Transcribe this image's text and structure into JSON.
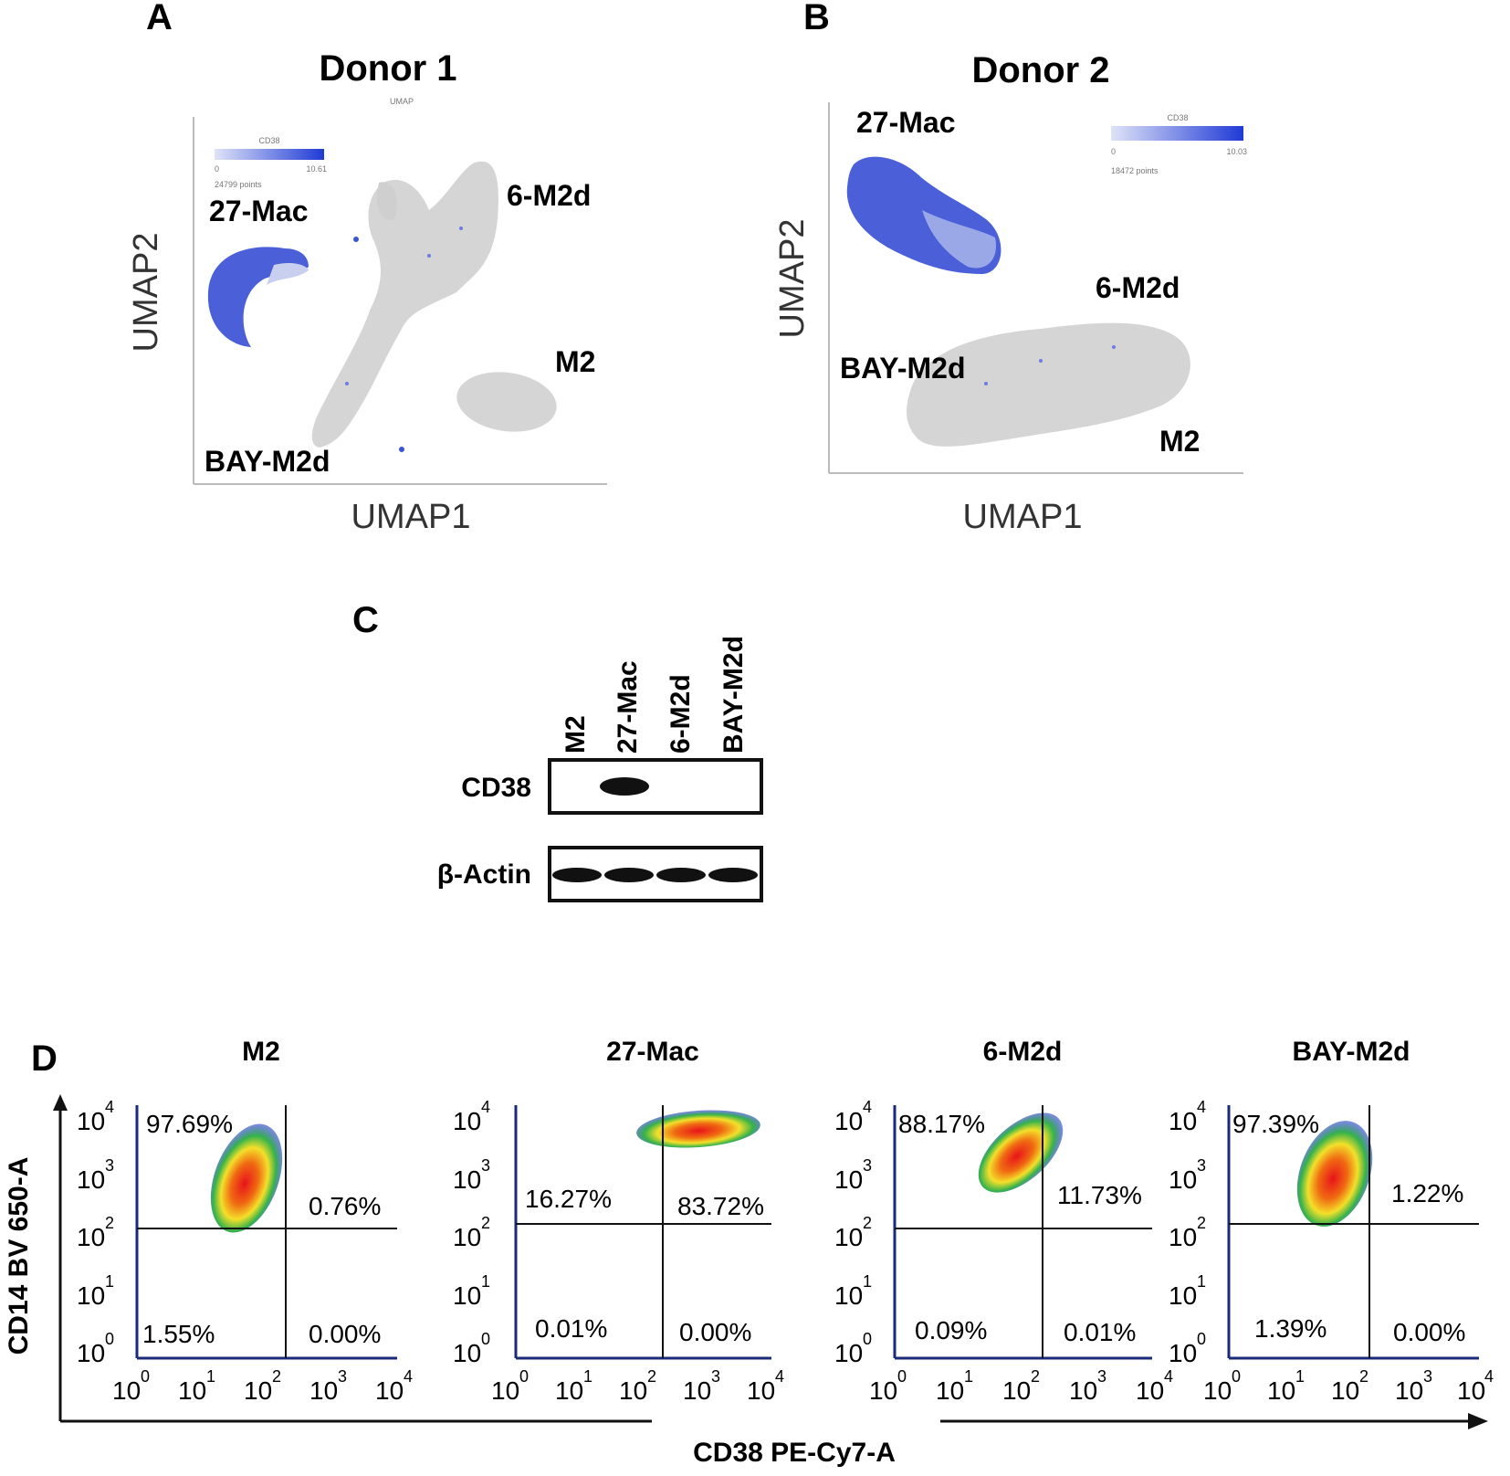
{
  "panels": {
    "a": {
      "label": "A",
      "title": "Donor 1",
      "xlabel": "UMAP1",
      "ylabel": "UMAP2",
      "legend": {
        "name": "CD38",
        "min": "0",
        "max": "10.61",
        "points": "24799 points"
      },
      "top_caption": "UMAP",
      "clusters": [
        "27-Mac",
        "6-M2d",
        "M2",
        "BAY-M2d"
      ]
    },
    "b": {
      "label": "B",
      "title": "Donor 2",
      "xlabel": "UMAP1",
      "ylabel": "UMAP2",
      "legend": {
        "name": "CD38",
        "min": "0",
        "max": "10.03",
        "points": "18472 points"
      },
      "clusters": [
        "27-Mac",
        "6-M2d",
        "BAY-M2d",
        "M2"
      ]
    },
    "c": {
      "label": "C",
      "lanes": [
        "M2",
        "27-Mac",
        "6-M2d",
        "BAY-M2d"
      ],
      "blots": [
        {
          "name": "CD38",
          "band_intensity": [
            0,
            1,
            0,
            0
          ]
        },
        {
          "name": "β-Actin",
          "band_intensity": [
            1,
            1,
            1,
            1
          ]
        }
      ]
    },
    "d": {
      "label": "D",
      "xlabel": "CD38  PE-Cy7-A",
      "ylabel": "CD14 BV 650-A",
      "tick_base": "10",
      "tick_exponents": [
        "0",
        "1",
        "2",
        "3",
        "4"
      ],
      "plots": [
        {
          "title": "M2",
          "quadrants": {
            "UL": "97.69%",
            "UR": "0.76%",
            "LL": "1.55%",
            "LR": "0.00%"
          }
        },
        {
          "title": "27-Mac",
          "quadrants": {
            "UL": "16.27%",
            "UR": "83.72%",
            "LL": "0.01%",
            "LR": "0.00%"
          }
        },
        {
          "title": "6-M2d",
          "quadrants": {
            "UL": "88.17%",
            "UR": "11.73%",
            "LL": "0.09%",
            "LR": "0.01%"
          }
        },
        {
          "title": "BAY-M2d",
          "quadrants": {
            "UL": "97.39%",
            "UR": "1.22%",
            "LL": "1.39%",
            "LR": "0.00%"
          }
        }
      ]
    }
  },
  "colors": {
    "cd38_high": "#1f3ad6",
    "cluster_grey": "#d8d8d8",
    "band": "#111111"
  }
}
